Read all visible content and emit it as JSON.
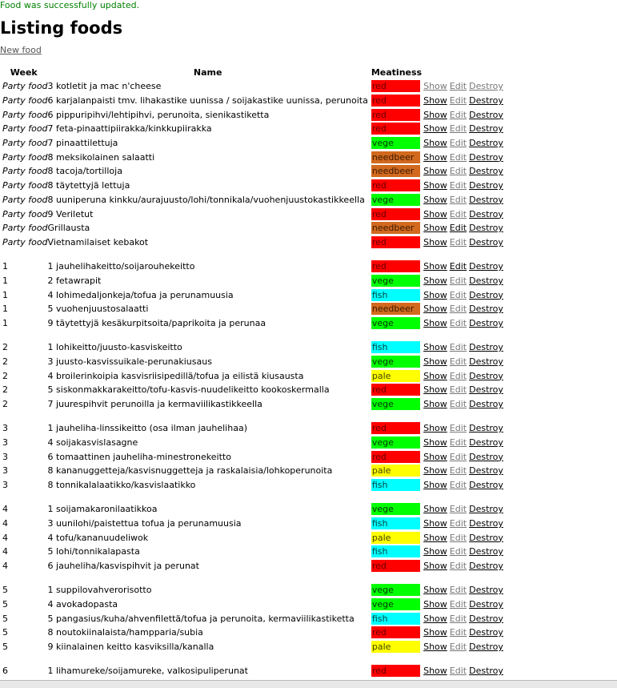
{
  "notice": "Food was successfully updated.",
  "title": "Listing foods",
  "new_food_label": "New food",
  "headers": {
    "week": "Week",
    "name": "Name",
    "meatiness": "Meatiness"
  },
  "actions": {
    "show": "Show",
    "edit": "Edit",
    "destroy": "Destroy"
  },
  "colors": {
    "red": "#ff0000",
    "vege": "#00ff00",
    "fish": "#00ffff",
    "needbeer": "#d2691e",
    "pale": "#ffff00"
  },
  "groups": [
    {
      "rows": [
        {
          "week": "Party food",
          "day": "3",
          "name": "kotletit ja mac n'cheese",
          "meat": "red",
          "show": "gray",
          "edit": "gray",
          "destroy": "gray"
        },
        {
          "week": "Party food",
          "day": "6",
          "name": "karjalanpaisti tmv. lihakastike uunissa / soijakastike uunissa, perunoita",
          "meat": "red",
          "show": "black",
          "edit": "gray",
          "destroy": "black"
        },
        {
          "week": "Party food",
          "day": "6",
          "name": "pippuripihvi/lehtipihvi, perunoita, sienikastiketta",
          "meat": "red",
          "show": "black",
          "edit": "gray",
          "destroy": "black"
        },
        {
          "week": "Party food",
          "day": "7",
          "name": "feta-pinaattipiirakka/kinkkupiirakka",
          "meat": "red",
          "show": "black",
          "edit": "gray",
          "destroy": "black"
        },
        {
          "week": "Party food",
          "day": "7",
          "name": "pinaattilettuja",
          "meat": "vege",
          "show": "black",
          "edit": "gray",
          "destroy": "black"
        },
        {
          "week": "Party food",
          "day": "8",
          "name": "meksikolainen salaatti",
          "meat": "needbeer",
          "show": "black",
          "edit": "gray",
          "destroy": "black"
        },
        {
          "week": "Party food",
          "day": "8",
          "name": "tacoja/tortilloja",
          "meat": "needbeer",
          "show": "black",
          "edit": "gray",
          "destroy": "black"
        },
        {
          "week": "Party food",
          "day": "8",
          "name": "täytettyjä lettuja",
          "meat": "red",
          "show": "black",
          "edit": "gray",
          "destroy": "black"
        },
        {
          "week": "Party food",
          "day": "8",
          "name": "uuniperuna kinkku/aurajuusto/lohi/tonnikala/vuohenjuustokastikkeella",
          "meat": "vege",
          "show": "black",
          "edit": "gray",
          "destroy": "black"
        },
        {
          "week": "Party food",
          "day": "9",
          "name": "Veriletut",
          "meat": "red",
          "show": "black",
          "edit": "gray",
          "destroy": "black"
        },
        {
          "week": "Party food",
          "day": "",
          "name": "Grillausta",
          "meat": "needbeer",
          "show": "black",
          "edit": "black",
          "destroy": "black"
        },
        {
          "week": "Party food",
          "day": "",
          "name": "Vietnamilaiset kebakot",
          "meat": "red",
          "show": "black",
          "edit": "gray",
          "destroy": "black"
        }
      ]
    },
    {
      "rows": [
        {
          "week": "1",
          "day": "1",
          "name": "jauhelihakeitto/soijarouhekeitto",
          "meat": "red",
          "show": "black",
          "edit": "black",
          "destroy": "black"
        },
        {
          "week": "1",
          "day": "2",
          "name": "fetawrapit",
          "meat": "vege",
          "show": "black",
          "edit": "gray",
          "destroy": "black"
        },
        {
          "week": "1",
          "day": "4",
          "name": "lohimedaljonkeja/tofua ja perunamuusia",
          "meat": "fish",
          "show": "black",
          "edit": "gray",
          "destroy": "black"
        },
        {
          "week": "1",
          "day": "5",
          "name": "vuohenjuustosalaatti",
          "meat": "needbeer",
          "show": "black",
          "edit": "gray",
          "destroy": "black"
        },
        {
          "week": "1",
          "day": "9",
          "name": "täytettyjä kesäkurpitsoita/paprikoita ja perunaa",
          "meat": "vege",
          "show": "black",
          "edit": "gray",
          "destroy": "black"
        }
      ]
    },
    {
      "rows": [
        {
          "week": "2",
          "day": "1",
          "name": "lohikeitto/juusto-kasviskeitto",
          "meat": "fish",
          "show": "black",
          "edit": "gray",
          "destroy": "black"
        },
        {
          "week": "2",
          "day": "3",
          "name": "juusto-kasvissuikale-perunakiusaus",
          "meat": "vege",
          "show": "black",
          "edit": "gray",
          "destroy": "black"
        },
        {
          "week": "2",
          "day": "4",
          "name": "broilerinkoipia kasvisriisipedillä/tofua ja eilistä kiusausta",
          "meat": "pale",
          "show": "black",
          "edit": "gray",
          "destroy": "black"
        },
        {
          "week": "2",
          "day": "5",
          "name": "siskonmakkarakeitto/tofu-kasvis-nuudelikeitto kookoskermalla",
          "meat": "red",
          "show": "black",
          "edit": "gray",
          "destroy": "black"
        },
        {
          "week": "2",
          "day": "7",
          "name": "juurespihvit perunoilla ja kermaviilikastikkeella",
          "meat": "vege",
          "show": "black",
          "edit": "gray",
          "destroy": "black"
        }
      ]
    },
    {
      "rows": [
        {
          "week": "3",
          "day": "1",
          "name": "jauheliha-linssikeitto (osa ilman jauhelihaa)",
          "meat": "red",
          "show": "black",
          "edit": "gray",
          "destroy": "black"
        },
        {
          "week": "3",
          "day": "4",
          "name": "soijakasvislasagne",
          "meat": "vege",
          "show": "black",
          "edit": "gray",
          "destroy": "black"
        },
        {
          "week": "3",
          "day": "6",
          "name": "tomaattinen jauheliha-minestronekeitto",
          "meat": "red",
          "show": "black",
          "edit": "gray",
          "destroy": "black"
        },
        {
          "week": "3",
          "day": "8",
          "name": "kananuggetteja/kasvisnuggetteja ja raskalaisia/lohkoperunoita",
          "meat": "pale",
          "show": "black",
          "edit": "gray",
          "destroy": "black"
        },
        {
          "week": "3",
          "day": "8",
          "name": "tonnikalalaatikko/kasvislaatikko",
          "meat": "fish",
          "show": "black",
          "edit": "gray",
          "destroy": "black"
        }
      ]
    },
    {
      "rows": [
        {
          "week": "4",
          "day": "1",
          "name": "soijamakaronilaatikkoa",
          "meat": "vege",
          "show": "black",
          "edit": "gray",
          "destroy": "black"
        },
        {
          "week": "4",
          "day": "3",
          "name": "uunilohi/paistettua tofua ja perunamuusia",
          "meat": "fish",
          "show": "black",
          "edit": "gray",
          "destroy": "black"
        },
        {
          "week": "4",
          "day": "4",
          "name": "tofu/kananuudeliwok",
          "meat": "pale",
          "show": "black",
          "edit": "gray",
          "destroy": "black"
        },
        {
          "week": "4",
          "day": "5",
          "name": "lohi/tonnikalapasta",
          "meat": "fish",
          "show": "black",
          "edit": "gray",
          "destroy": "black"
        },
        {
          "week": "4",
          "day": "6",
          "name": "jauheliha/kasvispihvit ja perunat",
          "meat": "red",
          "show": "black",
          "edit": "gray",
          "destroy": "black"
        }
      ]
    },
    {
      "rows": [
        {
          "week": "5",
          "day": "1",
          "name": "suppilovahverorisotto",
          "meat": "vege",
          "show": "black",
          "edit": "gray",
          "destroy": "black"
        },
        {
          "week": "5",
          "day": "4",
          "name": "avokadopasta",
          "meat": "vege",
          "show": "black",
          "edit": "gray",
          "destroy": "black"
        },
        {
          "week": "5",
          "day": "5",
          "name": "pangasius/kuha/ahvenfilettä/tofua ja perunoita, kermaviilikastiketta",
          "meat": "fish",
          "show": "black",
          "edit": "gray",
          "destroy": "black"
        },
        {
          "week": "5",
          "day": "8",
          "name": "noutokiinalaista/hampparia/subia",
          "meat": "red",
          "show": "black",
          "edit": "gray",
          "destroy": "black"
        },
        {
          "week": "5",
          "day": "9",
          "name": "kiinalainen keitto kasviksilla/kanalla",
          "meat": "pale",
          "show": "black",
          "edit": "gray",
          "destroy": "black"
        }
      ]
    },
    {
      "rows": [
        {
          "week": "6",
          "day": "1",
          "name": "lihamureke/soijamureke, valkosipuliperunat",
          "meat": "red",
          "show": "black",
          "edit": "gray",
          "destroy": "black"
        }
      ]
    }
  ]
}
